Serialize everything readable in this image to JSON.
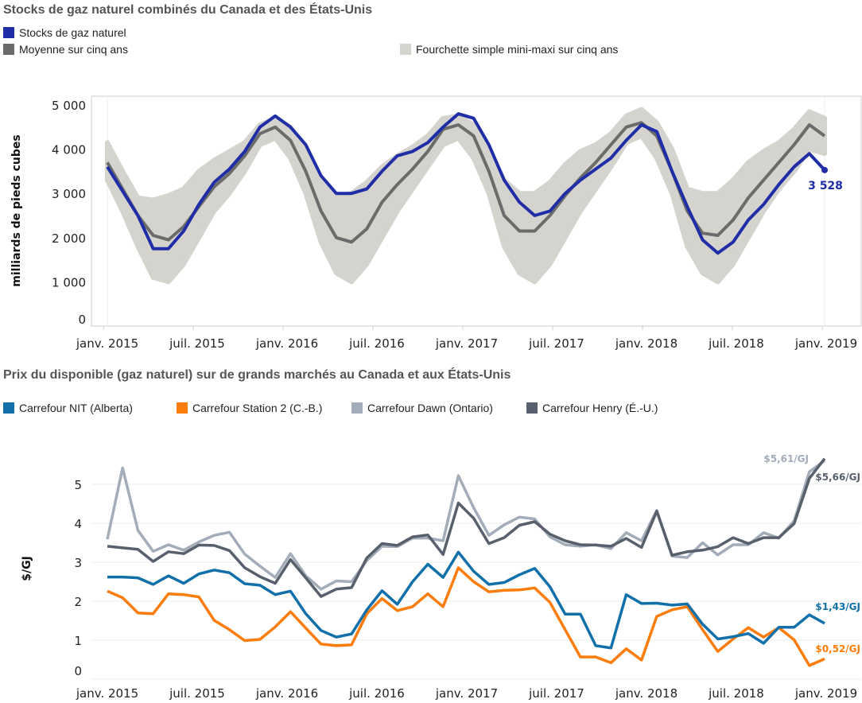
{
  "chart_data": [
    {
      "type": "line",
      "title": "Stocks de gaz naturel combinés du Canada et des États-Unis",
      "ylabel": "milliards de pieds cubes",
      "ylim": [
        0,
        5000
      ],
      "yticks": [
        "0",
        "1 000",
        "2 000",
        "3 000",
        "4 000",
        "5 000"
      ],
      "yticks_values": [
        0,
        1000,
        2000,
        3000,
        4000,
        5000
      ],
      "xticks": [
        "janv. 2015",
        "juil. 2015",
        "janv. 2016",
        "juil. 2016",
        "janv. 2017",
        "juil. 2017",
        "janv. 2018",
        "juil. 2018",
        "janv. 2019"
      ],
      "x_start": "2015-01",
      "x_end": "2018-12",
      "x_frequency": "monthly",
      "legend_placement": "top",
      "series": [
        {
          "name": "Stocks de gaz naturel",
          "color": "#1f2ea6",
          "values": [
            3600,
            3050,
            2500,
            1750,
            1750,
            2150,
            2750,
            3250,
            3550,
            3950,
            4500,
            4750,
            4500,
            4100,
            3400,
            3000,
            3000,
            3100,
            3500,
            3850,
            3950,
            4150,
            4500,
            4800,
            4700,
            4100,
            3300,
            2800,
            2500,
            2600,
            3000,
            3300,
            3550,
            3800,
            4200,
            4550,
            4400,
            3500,
            2700,
            1950,
            1650,
            1900,
            2400,
            2750,
            3200,
            3600,
            3900,
            3528
          ]
        },
        {
          "name": "Moyenne sur cinq ans",
          "color": "#6b6b6b",
          "values": [
            3700,
            3100,
            2500,
            2050,
            1950,
            2250,
            2700,
            3150,
            3450,
            3850,
            4350,
            4500,
            4200,
            3500,
            2600,
            2000,
            1900,
            2200,
            2800,
            3200,
            3550,
            3950,
            4450,
            4550,
            4300,
            3500,
            2500,
            2150,
            2150,
            2500,
            2950,
            3350,
            3700,
            4100,
            4500,
            4600,
            4300,
            3500,
            2600,
            2100,
            2050,
            2400,
            2900,
            3300,
            3700,
            4100,
            4550,
            4300
          ]
        }
      ],
      "band": {
        "name": "Fourchette simple mini-maxi sur cinq ans",
        "color": "#d5d3cd",
        "max": [
          4150,
          3500,
          2900,
          2850,
          2950,
          3100,
          3500,
          3750,
          3950,
          4150,
          4550,
          4700,
          4500,
          4000,
          3300,
          2950,
          3000,
          3250,
          3600,
          3850,
          4050,
          4300,
          4700,
          4750,
          4550,
          4000,
          3300,
          3000,
          3000,
          3250,
          3650,
          3950,
          4100,
          4350,
          4750,
          4900,
          4600,
          4000,
          3100,
          3000,
          3000,
          3300,
          3700,
          3950,
          4150,
          4450,
          4850,
          4700
        ],
        "min": [
          3300,
          2600,
          1800,
          1100,
          1000,
          1400,
          2000,
          2600,
          3000,
          3500,
          4100,
          4250,
          3800,
          3000,
          1900,
          1200,
          1000,
          1400,
          2000,
          2600,
          3100,
          3600,
          4100,
          4250,
          3800,
          3000,
          1800,
          1200,
          1000,
          1400,
          2000,
          2600,
          3100,
          3600,
          4150,
          4300,
          3800,
          3000,
          1800,
          1200,
          1000,
          1400,
          2000,
          2600,
          3100,
          3500,
          4000,
          3900
        ]
      },
      "annotations": [
        {
          "text": "3 528",
          "series": "Stocks de gaz naturel"
        }
      ]
    },
    {
      "type": "line",
      "title": "Prix du disponible (gaz naturel) sur de grands marchés au Canada et aux États-Unis",
      "ylabel": "$/GJ",
      "ylim": [
        0,
        5.9
      ],
      "yticks": [
        "0",
        "1",
        "2",
        "3",
        "4",
        "5"
      ],
      "yticks_values": [
        0,
        1,
        2,
        3,
        4,
        5
      ],
      "grid": true,
      "xticks": [
        "janv. 2015",
        "juil. 2015",
        "janv. 2016",
        "juil. 2016",
        "janv. 2017",
        "juil. 2017",
        "janv. 2018",
        "juil. 2018",
        "janv. 2019"
      ],
      "x_start": "2015-01",
      "x_end": "2018-12",
      "x_frequency": "monthly",
      "legend_placement": "top",
      "series": [
        {
          "name": "Carrefour NIT (Alberta)",
          "color": "#1170aa",
          "end_label": "$1,43/GJ",
          "values": [
            2.62,
            2.62,
            2.6,
            2.43,
            2.65,
            2.46,
            2.7,
            2.8,
            2.73,
            2.45,
            2.41,
            2.17,
            2.26,
            1.68,
            1.25,
            1.08,
            1.16,
            1.78,
            2.27,
            1.92,
            2.5,
            2.95,
            2.61,
            3.26,
            2.77,
            2.43,
            2.48,
            2.68,
            2.84,
            2.37,
            1.67,
            1.67,
            0.86,
            0.8,
            2.17,
            1.94,
            1.95,
            1.9,
            1.93,
            1.41,
            1.03,
            1.09,
            1.17,
            0.92,
            1.33,
            1.33,
            1.65,
            1.43
          ]
        },
        {
          "name": "Carrefour Station 2 (C.-B.)",
          "color": "#fc7d0b",
          "end_label": "$0,52/GJ",
          "values": [
            2.26,
            2.09,
            1.7,
            1.68,
            2.19,
            2.17,
            2.11,
            1.51,
            1.27,
            0.99,
            1.02,
            1.34,
            1.73,
            1.31,
            0.9,
            0.86,
            0.88,
            1.68,
            2.07,
            1.76,
            1.86,
            2.19,
            1.86,
            2.86,
            2.5,
            2.24,
            2.28,
            2.29,
            2.34,
            1.97,
            1.27,
            0.57,
            0.57,
            0.42,
            0.78,
            0.49,
            1.61,
            1.78,
            1.86,
            1.27,
            0.71,
            1.03,
            1.32,
            1.08,
            1.32,
            1.01,
            0.35,
            0.52
          ]
        },
        {
          "name": "Carrefour Dawn (Ontario)",
          "color": "#a3acb9",
          "end_label": "$5,61/GJ",
          "values": [
            3.59,
            5.42,
            3.82,
            3.28,
            3.45,
            3.31,
            3.52,
            3.69,
            3.77,
            3.21,
            2.9,
            2.61,
            3.22,
            2.65,
            2.31,
            2.52,
            2.5,
            3.04,
            3.41,
            3.4,
            3.62,
            3.62,
            3.55,
            5.22,
            4.4,
            3.69,
            3.96,
            4.16,
            4.11,
            3.65,
            3.45,
            3.41,
            3.45,
            3.35,
            3.76,
            3.55,
            4.33,
            3.16,
            3.12,
            3.5,
            3.19,
            3.45,
            3.45,
            3.76,
            3.62,
            4.06,
            5.32,
            5.61
          ]
        },
        {
          "name": "Carrefour Henry (É.-U.)",
          "color": "#57606c",
          "end_label": "$5,66/GJ",
          "values": [
            3.41,
            3.37,
            3.33,
            3.02,
            3.27,
            3.22,
            3.44,
            3.43,
            3.3,
            2.86,
            2.63,
            2.46,
            3.07,
            2.6,
            2.12,
            2.31,
            2.35,
            3.11,
            3.48,
            3.43,
            3.65,
            3.7,
            3.2,
            4.52,
            4.13,
            3.48,
            3.63,
            3.95,
            4.04,
            3.72,
            3.55,
            3.45,
            3.44,
            3.41,
            3.61,
            3.38,
            4.31,
            3.18,
            3.27,
            3.31,
            3.4,
            3.63,
            3.48,
            3.63,
            3.63,
            3.99,
            5.15,
            5.66
          ]
        }
      ]
    }
  ]
}
